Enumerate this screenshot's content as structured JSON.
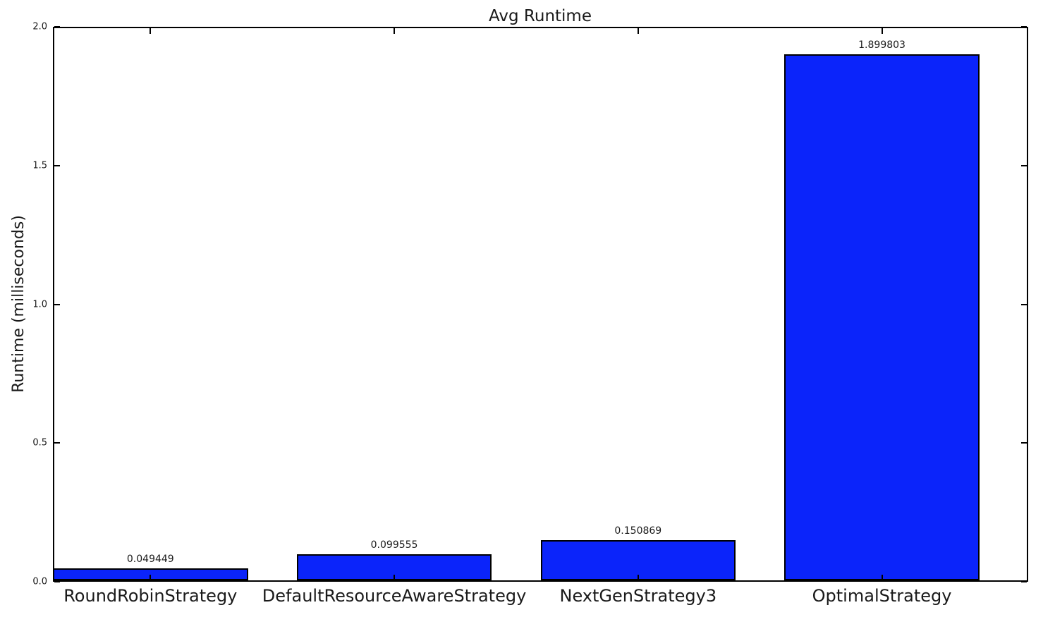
{
  "title": "Avg Runtime",
  "chart_data": {
    "type": "bar",
    "title": "Avg Runtime",
    "xlabel": "",
    "ylabel": "Runtime (milliseconds)",
    "categories": [
      "RoundRobinStrategy",
      "DefaultResourceAwareStrategy",
      "NextGenStrategy3",
      "OptimalStrategy"
    ],
    "values": [
      0.049449,
      0.099555,
      0.150869,
      1.899803
    ],
    "value_labels": [
      "0.049449",
      "0.099555",
      "0.150869",
      "1.899803"
    ],
    "ylim": [
      0.0,
      2.0
    ],
    "yticks": [
      0.0,
      0.5,
      1.0,
      1.5,
      2.0
    ],
    "ytick_labels": [
      "0.0",
      "0.5",
      "1.0",
      "1.5",
      "2.0"
    ],
    "bar_color": "#0b24fa",
    "bar_edge_color": "#000000",
    "grid": false,
    "legend": null,
    "bar_width_fraction": 0.8,
    "tick_direction": "in"
  }
}
